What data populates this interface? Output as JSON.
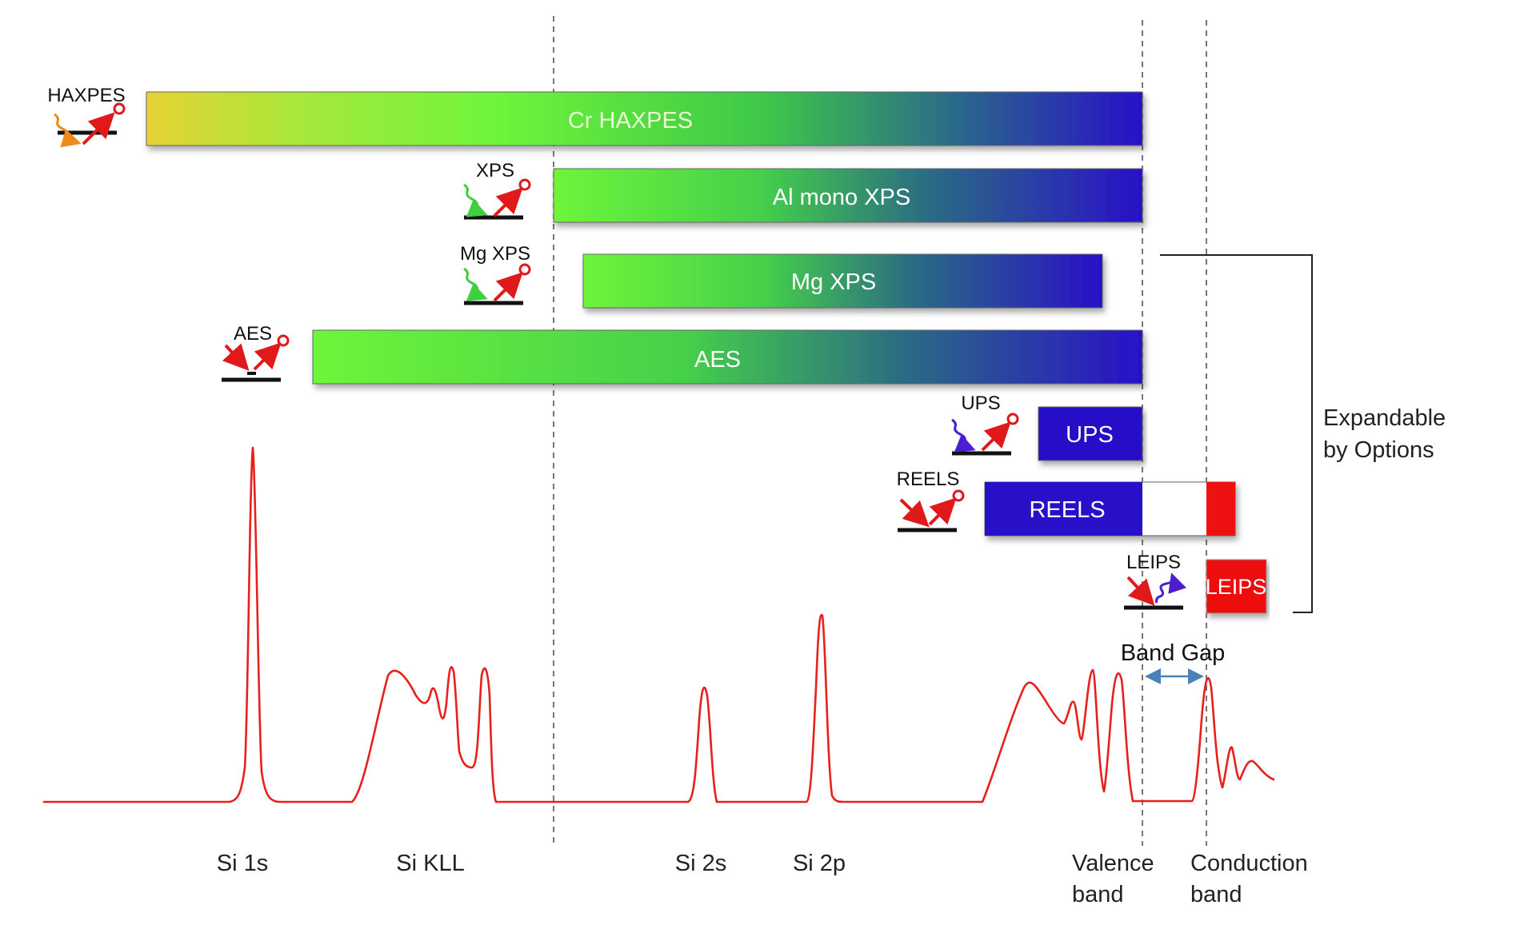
{
  "techniques": [
    {
      "id": "haxpes",
      "bar_label": "Cr HAXPES",
      "icon_label": "HAXPES",
      "photon": "orange"
    },
    {
      "id": "xps",
      "bar_label": "Al mono XPS",
      "icon_label": "XPS",
      "photon": "green"
    },
    {
      "id": "mgxps",
      "bar_label": "Mg XPS",
      "icon_label": "Mg XPS",
      "photon": "green"
    },
    {
      "id": "aes",
      "bar_label": "AES",
      "icon_label": "AES",
      "photon": "electron"
    },
    {
      "id": "ups",
      "bar_label": "UPS",
      "icon_label": "UPS",
      "photon": "violet"
    },
    {
      "id": "reels",
      "bar_label": "REELS",
      "icon_label": "REELS",
      "photon": "electron"
    },
    {
      "id": "leips",
      "bar_label": "LEIPS",
      "icon_label": "LEIPS",
      "photon": "emitted-violet"
    }
  ],
  "bracket_label": [
    "Expandable",
    "by Options"
  ],
  "band_gap_label": "Band Gap",
  "peak_labels": [
    {
      "id": "si1s",
      "lines": [
        "Si 1s"
      ]
    },
    {
      "id": "sikll",
      "lines": [
        "Si KLL"
      ]
    },
    {
      "id": "si2s",
      "lines": [
        "Si 2s"
      ]
    },
    {
      "id": "si2p",
      "lines": [
        "Si 2p"
      ]
    },
    {
      "id": "valence",
      "lines": [
        "Valence",
        "band"
      ]
    },
    {
      "id": "conduction",
      "lines": [
        "Conduction",
        "band"
      ]
    }
  ],
  "colors": {
    "spectrum": "#e8201c",
    "arrow_red": "#e01a1a",
    "gap_arrow": "#4a82b8",
    "bar_yellow": "#e6d235",
    "bar_green": "#6ef53a",
    "bar_blue": "#2412c8",
    "leips_red": "#ee1111"
  }
}
